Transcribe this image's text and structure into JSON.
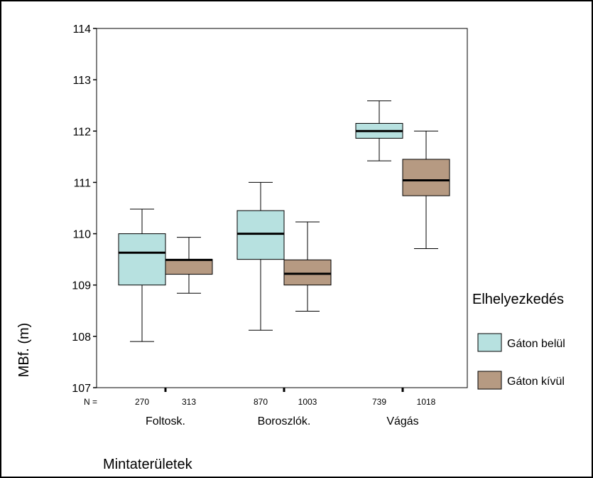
{
  "chart_data": {
    "type": "boxplot",
    "xlabel": "Mintaterületek",
    "ylabel": "MBf. (m)",
    "ylim": [
      107,
      114
    ],
    "yticks": [
      "107",
      "108",
      "109",
      "110",
      "111",
      "112",
      "113",
      "114"
    ],
    "n_label": "N =",
    "categories": [
      "Foltosk.",
      "Boroszlók.",
      "Vágás"
    ],
    "legend": {
      "title": "Elhelyezkedés",
      "placement": "right",
      "entries": [
        {
          "label": "Gáton belül",
          "color": "#b7e1e0"
        },
        {
          "label": "Gáton kívül",
          "color": "#b69a82"
        }
      ]
    },
    "series": [
      {
        "name": "Gáton belül",
        "color": "#b7e1e0",
        "boxes": [
          {
            "category": "Foltosk.",
            "n": "270",
            "min": 107.9,
            "q1": 109.0,
            "median": 109.63,
            "q3": 110.0,
            "max": 110.48
          },
          {
            "category": "Boroszlók.",
            "n": "870",
            "min": 108.12,
            "q1": 109.5,
            "median": 110.0,
            "q3": 110.45,
            "max": 111.0
          },
          {
            "category": "Vágás",
            "n": "739",
            "min": 111.42,
            "q1": 111.86,
            "median": 112.0,
            "q3": 112.15,
            "max": 112.59
          }
        ]
      },
      {
        "name": "Gáton kívül",
        "color": "#b69a82",
        "boxes": [
          {
            "category": "Foltosk.",
            "n": "313",
            "min": 108.84,
            "q1": 109.21,
            "median": 109.49,
            "q3": 109.5,
            "max": 109.93
          },
          {
            "category": "Boroszlók.",
            "n": "1003",
            "min": 108.49,
            "q1": 109.0,
            "median": 109.22,
            "q3": 109.49,
            "max": 110.23
          },
          {
            "category": "Vágás",
            "n": "1018",
            "min": 109.71,
            "q1": 110.74,
            "median": 111.04,
            "q3": 111.45,
            "max": 112.0
          }
        ]
      }
    ]
  }
}
